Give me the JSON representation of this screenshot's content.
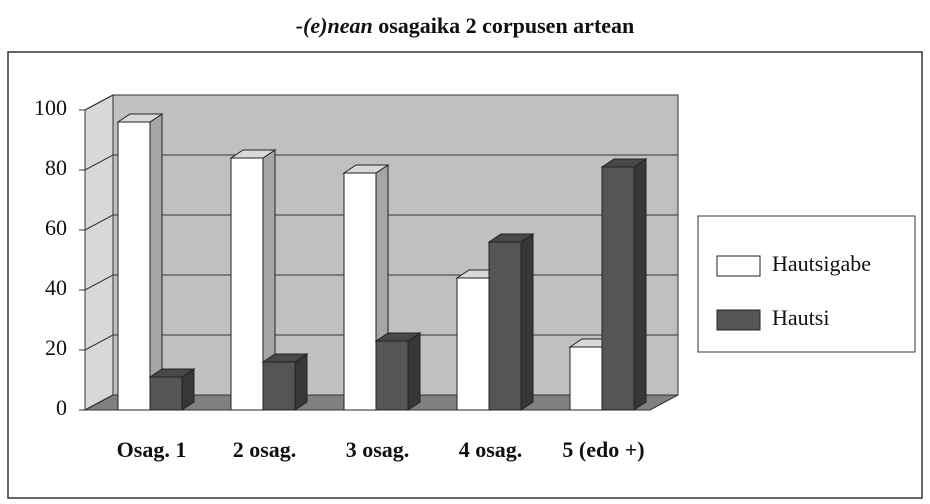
{
  "chart_data": {
    "type": "bar3d",
    "title": [
      "-(e)nean",
      "osagaika 2 corpusen artean"
    ],
    "categories": [
      "Osag. 1",
      "2 osag.",
      "3 osag.",
      "4 osag.",
      "5 (edo +)"
    ],
    "series": [
      {
        "name": "Hautsigabe",
        "color": "#ffffff",
        "values": [
          96,
          84,
          79,
          44,
          21
        ]
      },
      {
        "name": "Hautsi",
        "color": "#555555",
        "values": [
          11,
          16,
          23,
          56,
          81
        ]
      }
    ],
    "ylim": [
      0,
      100
    ],
    "yticks": [
      0,
      20,
      40,
      60,
      80,
      100
    ],
    "grid": true,
    "legend": "right"
  }
}
